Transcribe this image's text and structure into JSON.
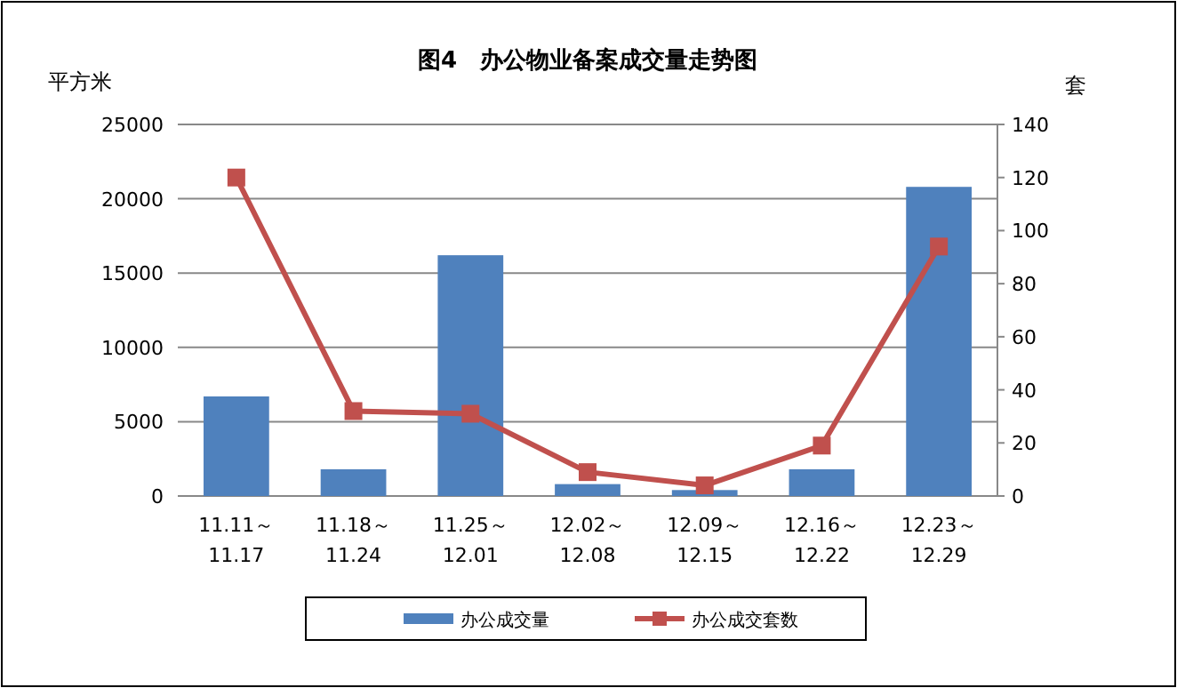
{
  "chart_data": {
    "type": "bar",
    "title": "图4　办公物业备案成交量走势图",
    "ylabel": "平方米",
    "y2label": "套",
    "categories": [
      "11.11～11.17",
      "11.18～11.24",
      "11.25～12.01",
      "12.02～12.08",
      "12.09～12.15",
      "12.16～12.22",
      "12.23～12.29"
    ],
    "series": [
      {
        "name": "办公成交量",
        "color": "#4f81bd",
        "values": [
          6700,
          1800,
          16200,
          800,
          400,
          1800,
          20800
        ]
      },
      {
        "name": "办公成交套数",
        "type": "line",
        "axis": "y2",
        "color": "#c0504d",
        "marker": "square",
        "values": [
          120,
          32,
          31,
          9,
          4,
          19,
          94
        ]
      }
    ],
    "ylim": [
      0,
      25000
    ],
    "yticks": [
      0,
      5000,
      10000,
      15000,
      20000,
      25000
    ],
    "y2lim": [
      0,
      140
    ],
    "y2ticks": [
      0,
      20,
      40,
      60,
      80,
      100,
      120,
      140
    ],
    "grid": "y",
    "legend": "bottom"
  }
}
